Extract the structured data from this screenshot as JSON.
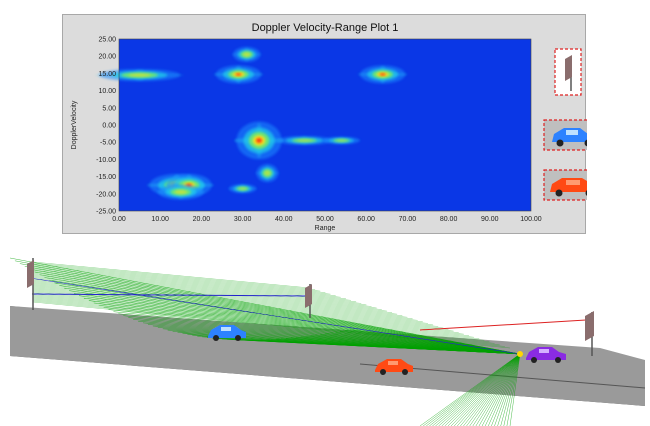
{
  "chart_data": {
    "type": "heatmap",
    "title": "Doppler Velocity-Range Plot 1",
    "xlabel": "Range",
    "ylabel": "DopplerVelocity",
    "xlim": [
      0,
      100
    ],
    "ylim": [
      -25,
      25
    ],
    "x_ticks": [
      "0.00",
      "10.00",
      "20.00",
      "30.00",
      "40.00",
      "50.00",
      "60.00",
      "70.00",
      "80.00",
      "90.00",
      "100.00"
    ],
    "y_ticks": [
      "25.00",
      "20.00",
      "15.00",
      "10.00",
      "5.00",
      "0.00",
      "-5.00",
      "-10.00",
      "-15.00",
      "-20.00",
      "-25.00"
    ],
    "background_color": "#0a37e6",
    "grid": false,
    "detections": [
      {
        "range": 5,
        "velocity": 14.5,
        "intensity": 0.6,
        "spread_x": 4.5,
        "spread_y": 0.8
      },
      {
        "range": 29,
        "velocity": 14.7,
        "intensity": 1.0,
        "spread_x": 2.5,
        "spread_y": 1.2
      },
      {
        "range": 31,
        "velocity": 20.5,
        "intensity": 0.55,
        "spread_x": 1.5,
        "spread_y": 1.0
      },
      {
        "range": 64,
        "velocity": 14.7,
        "intensity": 0.95,
        "spread_x": 2.5,
        "spread_y": 1.2
      },
      {
        "range": 34,
        "velocity": -4.5,
        "intensity": 1.0,
        "spread_x": 2.5,
        "spread_y": 2.5
      },
      {
        "range": 45,
        "velocity": -4.5,
        "intensity": 0.4,
        "spread_x": 3.0,
        "spread_y": 0.6
      },
      {
        "range": 54,
        "velocity": -4.5,
        "intensity": 0.35,
        "spread_x": 2.0,
        "spread_y": 0.5
      },
      {
        "range": 36,
        "velocity": -14,
        "intensity": 0.5,
        "spread_x": 1.2,
        "spread_y": 1.2
      },
      {
        "range": 14,
        "velocity": -17.5,
        "intensity": 1.0,
        "spread_x": 3.0,
        "spread_y": 1.5
      },
      {
        "range": 17,
        "velocity": -17.5,
        "intensity": 0.95,
        "spread_x": 2.5,
        "spread_y": 1.5
      },
      {
        "range": 15,
        "velocity": -19.5,
        "intensity": 0.6,
        "spread_x": 2.5,
        "spread_y": 1.0
      },
      {
        "range": 30,
        "velocity": -18.5,
        "intensity": 0.4,
        "spread_x": 1.5,
        "spread_y": 0.6
      }
    ],
    "legend": [
      {
        "icon": "sign-pole-icon"
      },
      {
        "icon": "blue-car-icon",
        "color": "#2d82ff"
      },
      {
        "icon": "orange-car-icon",
        "color": "#ff4a14"
      }
    ]
  },
  "scene": {
    "road_color": "#9a9a9a",
    "ground_color": "#6c6c6c",
    "ray_color": "#00a000",
    "objects": [
      {
        "icon": "radar-sign-icon"
      },
      {
        "icon": "sign-pole-icon"
      },
      {
        "icon": "blue-car-icon",
        "color": "#2d82ff"
      },
      {
        "icon": "orange-car-icon",
        "color": "#ff4a14"
      },
      {
        "icon": "purple-car-icon",
        "color": "#8a2be2"
      },
      {
        "icon": "sign-pole-icon"
      }
    ]
  }
}
